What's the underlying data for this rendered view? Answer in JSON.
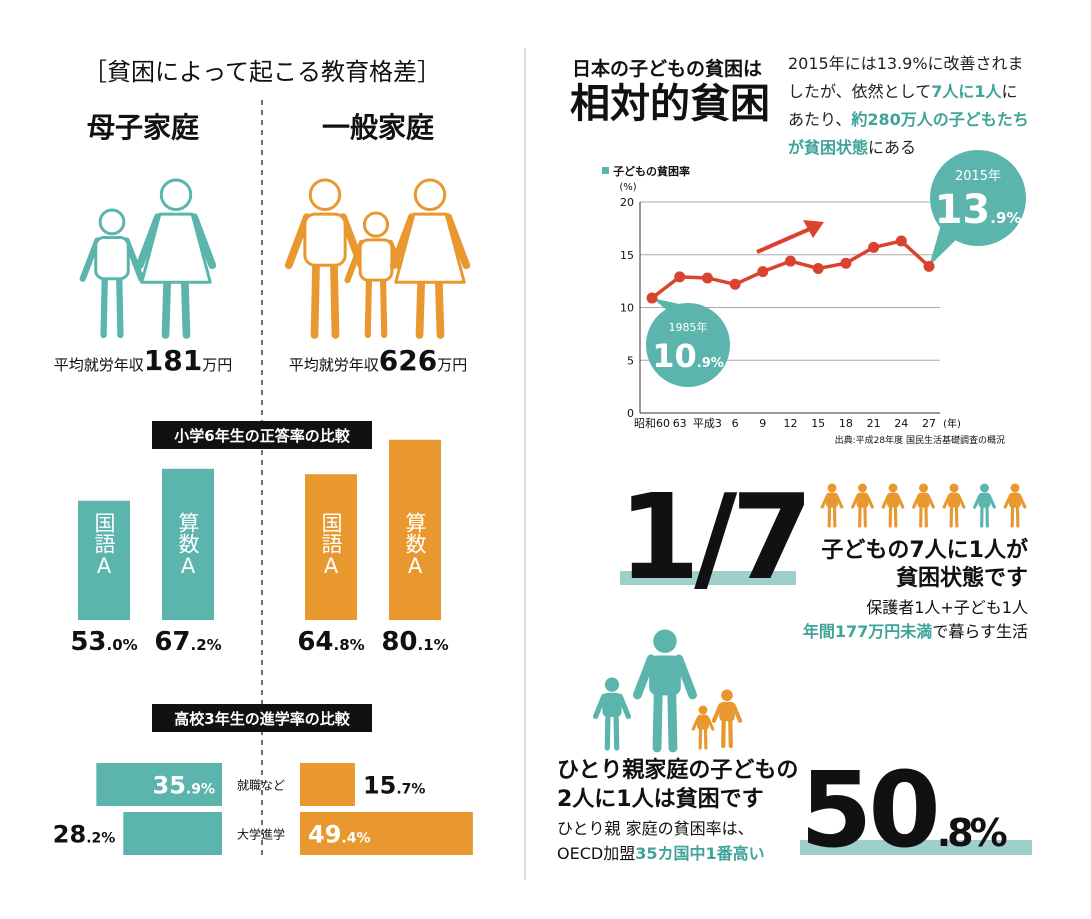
{
  "header": {
    "title": "［貧困によって起こる教育格差］"
  },
  "income": {
    "label": "平均就労年収",
    "unit": "万円",
    "values": [
      181,
      626
    ]
  },
  "chart_data": [
    {
      "type": "bar",
      "title": "小学6年生の正答率の比較",
      "categories": [
        "国語A",
        "算数A"
      ],
      "series": [
        {
          "name": "母子家庭",
          "color": "#5bb5ad",
          "values": [
            53.0,
            67.2
          ],
          "value_labels": [
            "53.0%",
            "67.2%"
          ]
        },
        {
          "name": "一般家庭",
          "color": "#e9982f",
          "values": [
            64.8,
            80.1
          ],
          "value_labels": [
            "64.8%",
            "80.1%"
          ]
        }
      ]
    },
    {
      "type": "hbar",
      "title": "高校3年生の進学率の比較",
      "categories": [
        "就職など",
        "大学進学"
      ],
      "series": [
        {
          "name": "母子家庭",
          "color": "#5bb5ad",
          "values": [
            35.9,
            28.2
          ],
          "value_labels": [
            "35.9%",
            "28.2%"
          ]
        },
        {
          "name": "一般家庭",
          "color": "#e9982f",
          "values": [
            15.7,
            49.4
          ],
          "value_labels": [
            "15.7%",
            "49.4%"
          ]
        }
      ]
    },
    {
      "type": "line",
      "categories": [
        "昭和60",
        "63",
        "平成3",
        "6",
        "9",
        "12",
        "15",
        "18",
        "21",
        "24",
        "27"
      ],
      "x_unit": "(年)",
      "y_unit": "(%)",
      "ylim": [
        0,
        20
      ],
      "yticks": [
        0,
        5,
        10,
        15,
        20
      ],
      "grid": true,
      "series": [
        {
          "name": "子どもの貧困率",
          "color": "#d9432f",
          "values": [
            10.9,
            12.9,
            12.8,
            12.2,
            13.4,
            14.4,
            13.7,
            14.2,
            15.7,
            16.3,
            13.9
          ],
          "value_labels": [
            "10.9%",
            null,
            null,
            null,
            null,
            null,
            null,
            null,
            null,
            null,
            "13.9%"
          ],
          "value_notes": [
            "1985年",
            null,
            null,
            null,
            null,
            null,
            null,
            null,
            null,
            null,
            "2015年"
          ]
        }
      ],
      "source": "出典:平成28年度 国民生活基礎調査の概況"
    }
  ],
  "summary": {
    "kicker": "日本の子どもの貧困は",
    "headline": "相対的貧困",
    "body": [
      {
        "text": "2015年には13.9%に改善されましたが、依然として"
      },
      {
        "text": "7人に1人",
        "highlight": true
      },
      {
        "text": "にあたり、"
      },
      {
        "text": "約280万人の子どもたちが貧困状態",
        "highlight": true
      },
      {
        "text": "にある"
      }
    ]
  },
  "ratio": {
    "value": "1/7",
    "lines": [
      "子どもの7人に1人が",
      "貧困状態です"
    ],
    "note_line": "保護者1人+子ども1人",
    "note_parts": [
      {
        "text": "年間177万円未満",
        "highlight": true
      },
      {
        "text": "で暮らす生活"
      }
    ]
  },
  "single_parent": {
    "lines": [
      "ひとり親家庭の子どもの",
      "2人に1人は貧困です"
    ],
    "note_line": "ひとり親 家庭の貧困率は、",
    "note_parts": [
      {
        "text": "OECD加盟"
      },
      {
        "text": "35カ国中1番高い",
        "highlight": true
      }
    ],
    "rate": 50.8,
    "rate_label": "50.8%"
  }
}
